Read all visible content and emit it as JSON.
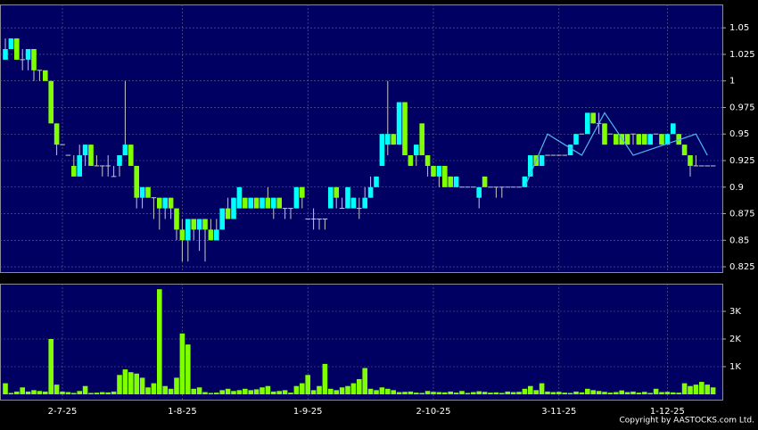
{
  "chart_data": {
    "type": "candlestick",
    "categories": [
      null,
      null,
      null,
      null,
      null,
      null,
      null,
      null,
      null,
      null,
      "2-7-25",
      null,
      null,
      null,
      null,
      null,
      null,
      null,
      null,
      null,
      null,
      null,
      null,
      null,
      null,
      null,
      null,
      null,
      null,
      null,
      null,
      "1-8-25",
      null,
      null,
      null,
      null,
      null,
      null,
      null,
      null,
      null,
      null,
      null,
      null,
      null,
      null,
      null,
      null,
      null,
      null,
      null,
      null,
      null,
      "1-9-25",
      null,
      null,
      null,
      null,
      null,
      null,
      null,
      null,
      null,
      null,
      null,
      null,
      null,
      null,
      null,
      null,
      null,
      null,
      null,
      null,
      null,
      "2-10-25",
      null,
      null,
      null,
      null,
      null,
      null,
      null,
      null,
      null,
      null,
      null,
      null,
      null,
      null,
      null,
      null,
      null,
      null,
      null,
      null,
      null,
      "3-11-25",
      null,
      null,
      null,
      null,
      null,
      null,
      null,
      null,
      null,
      null,
      null,
      null,
      null,
      null,
      null,
      null,
      null,
      null,
      "1-12-25",
      null,
      null,
      null,
      null,
      null,
      null,
      null,
      null
    ],
    "open": [
      1.02,
      1.03,
      1.04,
      1.02,
      1.02,
      1.03,
      1.01,
      1.01,
      1.0,
      0.96,
      0.94,
      0.93,
      0.92,
      0.91,
      0.93,
      0.94,
      0.92,
      0.92,
      0.92,
      0.91,
      0.92,
      0.93,
      0.94,
      0.92,
      0.89,
      0.9,
      0.89,
      0.89,
      0.88,
      0.89,
      0.88,
      0.86,
      0.85,
      0.87,
      0.86,
      0.87,
      0.86,
      0.85,
      0.86,
      0.88,
      0.87,
      0.88,
      0.89,
      0.88,
      0.89,
      0.88,
      0.89,
      0.88,
      0.89,
      0.88,
      0.88,
      0.88,
      0.9,
      0.87,
      0.87,
      0.87,
      0.87,
      0.88,
      0.9,
      0.88,
      0.88,
      0.88,
      0.88,
      0.88,
      0.89,
      0.9,
      0.92,
      0.94,
      0.95,
      0.94,
      0.98,
      0.93,
      0.93,
      0.96,
      0.93,
      0.92,
      0.91,
      0.92,
      0.91,
      0.9,
      0.9,
      0.9,
      0.9,
      0.89,
      0.91,
      0.9,
      0.9,
      0.9,
      0.9,
      0.9,
      0.9,
      0.9,
      0.91,
      0.93,
      0.92,
      0.93,
      0.93,
      0.93,
      0.93,
      0.93,
      0.94,
      0.95,
      0.95,
      0.97,
      0.96,
      0.96,
      0.95,
      0.95,
      0.95,
      0.95,
      0.95,
      0.95,
      0.95,
      0.94,
      0.95,
      0.95,
      0.94,
      0.95,
      0.95,
      0.94,
      0.93,
      0.92,
      0.92,
      0.92,
      0.92
    ],
    "high": [
      1.04,
      1.04,
      1.04,
      1.03,
      1.03,
      1.03,
      1.01,
      1.01,
      1.0,
      0.96,
      0.94,
      0.93,
      0.93,
      0.94,
      0.94,
      0.94,
      0.93,
      0.92,
      0.93,
      0.92,
      0.93,
      1.0,
      0.94,
      0.92,
      0.9,
      0.9,
      0.89,
      0.89,
      0.89,
      0.89,
      0.88,
      0.87,
      0.87,
      0.87,
      0.87,
      0.87,
      0.87,
      0.87,
      0.88,
      0.89,
      0.89,
      0.9,
      0.89,
      0.89,
      0.89,
      0.89,
      0.9,
      0.89,
      0.89,
      0.88,
      0.88,
      0.9,
      0.9,
      0.87,
      0.88,
      0.87,
      0.87,
      0.9,
      0.9,
      0.89,
      0.9,
      0.89,
      0.89,
      0.9,
      0.91,
      0.91,
      0.95,
      1.0,
      0.95,
      0.98,
      0.98,
      0.93,
      0.94,
      0.96,
      0.93,
      0.92,
      0.92,
      0.92,
      0.91,
      0.91,
      0.9,
      0.9,
      0.9,
      0.9,
      0.91,
      0.9,
      0.9,
      0.9,
      0.9,
      0.9,
      0.9,
      0.91,
      0.93,
      0.93,
      0.93,
      0.93,
      0.93,
      0.93,
      0.93,
      0.94,
      0.95,
      0.95,
      0.97,
      0.97,
      0.97,
      0.96,
      0.95,
      0.95,
      0.95,
      0.95,
      0.95,
      0.95,
      0.95,
      0.95,
      0.95,
      0.95,
      0.95,
      0.96,
      0.95,
      0.94,
      0.93,
      0.93,
      0.92,
      0.92,
      0.92
    ],
    "low": [
      1.02,
      1.03,
      1.02,
      1.01,
      1.01,
      1.0,
      1.0,
      1.0,
      0.96,
      0.93,
      0.94,
      0.93,
      0.91,
      0.91,
      0.92,
      0.92,
      0.92,
      0.91,
      0.91,
      0.91,
      0.91,
      0.93,
      0.92,
      0.88,
      0.88,
      0.89,
      0.87,
      0.86,
      0.87,
      0.87,
      0.85,
      0.83,
      0.83,
      0.85,
      0.84,
      0.83,
      0.85,
      0.85,
      0.86,
      0.87,
      0.87,
      0.88,
      0.88,
      0.88,
      0.88,
      0.88,
      0.88,
      0.87,
      0.88,
      0.87,
      0.87,
      0.88,
      0.88,
      0.87,
      0.86,
      0.86,
      0.86,
      0.88,
      0.88,
      0.88,
      0.88,
      0.88,
      0.87,
      0.88,
      0.89,
      0.9,
      0.92,
      0.93,
      0.94,
      0.94,
      0.93,
      0.92,
      0.92,
      0.93,
      0.91,
      0.91,
      0.9,
      0.9,
      0.9,
      0.9,
      0.9,
      0.9,
      0.9,
      0.88,
      0.9,
      0.9,
      0.89,
      0.89,
      0.9,
      0.9,
      0.9,
      0.9,
      0.91,
      0.92,
      0.92,
      0.93,
      0.93,
      0.93,
      0.93,
      0.93,
      0.94,
      0.95,
      0.95,
      0.96,
      0.95,
      0.94,
      0.95,
      0.94,
      0.94,
      0.94,
      0.94,
      0.94,
      0.94,
      0.94,
      0.95,
      0.94,
      0.94,
      0.95,
      0.94,
      0.93,
      0.91,
      0.92,
      0.92,
      0.92,
      0.92
    ],
    "close": [
      1.03,
      1.04,
      1.02,
      1.02,
      1.03,
      1.01,
      1.01,
      1.0,
      0.96,
      0.94,
      0.94,
      0.93,
      0.91,
      0.93,
      0.94,
      0.92,
      0.92,
      0.92,
      0.92,
      0.91,
      0.93,
      0.94,
      0.92,
      0.89,
      0.9,
      0.89,
      0.89,
      0.88,
      0.89,
      0.88,
      0.86,
      0.85,
      0.87,
      0.86,
      0.87,
      0.86,
      0.85,
      0.86,
      0.88,
      0.87,
      0.89,
      0.9,
      0.88,
      0.89,
      0.88,
      0.89,
      0.88,
      0.89,
      0.88,
      0.88,
      0.88,
      0.9,
      0.89,
      0.87,
      0.87,
      0.87,
      0.87,
      0.9,
      0.89,
      0.88,
      0.9,
      0.89,
      0.88,
      0.89,
      0.9,
      0.91,
      0.95,
      0.95,
      0.94,
      0.98,
      0.93,
      0.92,
      0.94,
      0.93,
      0.92,
      0.91,
      0.92,
      0.9,
      0.9,
      0.91,
      0.9,
      0.9,
      0.9,
      0.9,
      0.9,
      0.9,
      0.9,
      0.9,
      0.9,
      0.9,
      0.9,
      0.91,
      0.93,
      0.92,
      0.93,
      0.93,
      0.93,
      0.93,
      0.93,
      0.94,
      0.95,
      0.95,
      0.97,
      0.96,
      0.96,
      0.94,
      0.95,
      0.94,
      0.94,
      0.94,
      0.95,
      0.94,
      0.94,
      0.95,
      0.95,
      0.94,
      0.95,
      0.96,
      0.94,
      0.93,
      0.92,
      0.92,
      0.92,
      0.92,
      0.92
    ],
    "up_color": "#00ffff",
    "down_color": "#80ff00",
    "flat_color": "#c8c8c8",
    "ylim": [
      0.82,
      1.072
    ],
    "yticks": [
      0.825,
      0.85,
      0.875,
      0.9,
      0.925,
      0.95,
      0.975,
      1,
      1.025,
      1.05
    ],
    "grid": true,
    "overlay": {
      "x": [
        91,
        95,
        101,
        105,
        110,
        121,
        123
      ],
      "values": [
        0.9,
        0.95,
        0.93,
        0.97,
        0.93,
        0.95,
        0.93
      ],
      "color": "#4fb8f0"
    },
    "volume": {
      "values": [
        400,
        50,
        100,
        250,
        100,
        150,
        120,
        100,
        2000,
        350,
        100,
        80,
        50,
        120,
        300,
        50,
        60,
        80,
        70,
        100,
        700,
        900,
        800,
        750,
        600,
        250,
        400,
        3800,
        300,
        200,
        600,
        2200,
        1800,
        200,
        250,
        80,
        50,
        60,
        150,
        200,
        120,
        150,
        200,
        150,
        180,
        250,
        300,
        100,
        120,
        150,
        60,
        300,
        400,
        700,
        150,
        300,
        1100,
        200,
        150,
        250,
        300,
        400,
        550,
        950,
        200,
        150,
        250,
        200,
        150,
        80,
        90,
        100,
        60,
        50,
        120,
        90,
        80,
        70,
        100,
        60,
        120,
        50,
        80,
        110,
        90,
        60,
        70,
        50,
        100,
        80,
        90,
        200,
        300,
        150,
        400,
        100,
        80,
        90,
        60,
        50,
        100,
        70,
        200,
        150,
        120,
        90,
        60,
        80,
        140,
        80,
        100,
        60,
        90,
        50,
        200,
        80,
        90,
        70,
        60,
        400,
        300,
        350,
        450,
        350,
        250
      ],
      "color": "#80ff00",
      "ylim": [
        0,
        4000
      ],
      "yticks": [
        {
          "value": 1000,
          "label": "1K"
        },
        {
          "value": 2000,
          "label": "2K"
        },
        {
          "value": 3000,
          "label": "3K"
        }
      ]
    }
  },
  "footer": {
    "copyright": "Copyright by AASTOCKS.com Ltd."
  }
}
